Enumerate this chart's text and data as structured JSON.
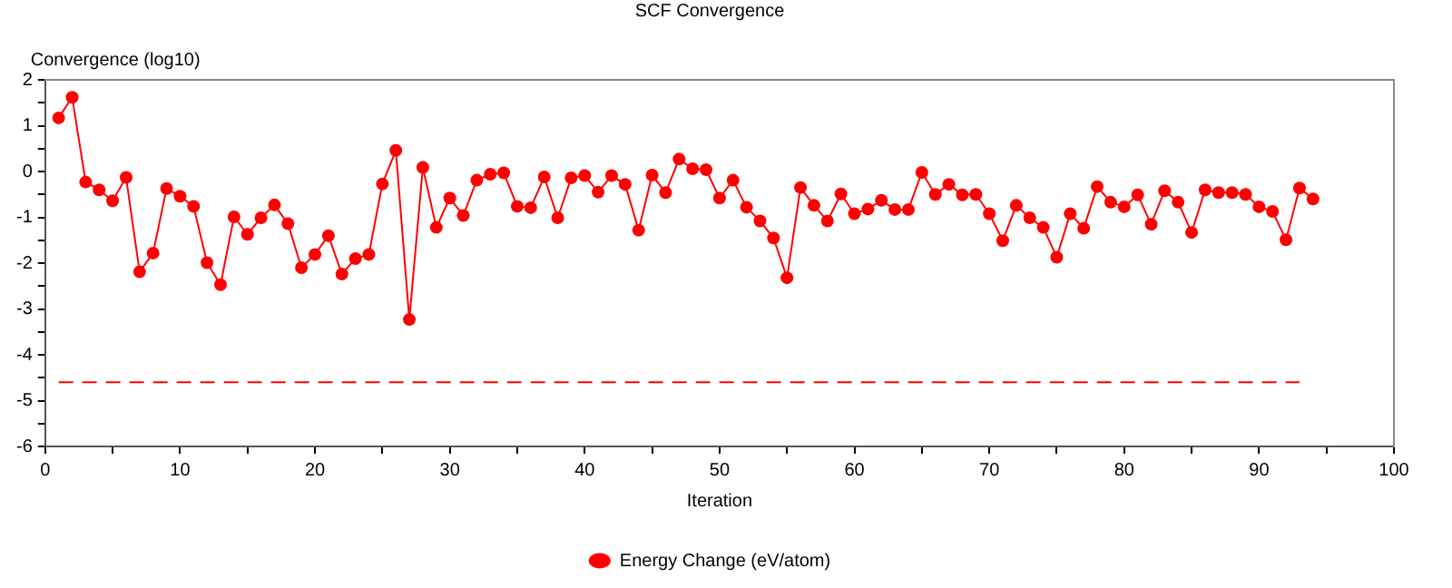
{
  "chart_data": {
    "type": "line",
    "title": "SCF Convergence",
    "xlabel": "Iteration",
    "ylabel": "Convergence (log10)",
    "x": [
      1,
      2,
      3,
      4,
      5,
      6,
      7,
      8,
      9,
      10,
      11,
      12,
      13,
      14,
      15,
      16,
      17,
      18,
      19,
      20,
      21,
      22,
      23,
      24,
      25,
      26,
      27,
      28,
      29,
      30,
      31,
      32,
      33,
      34,
      35,
      36,
      37,
      38,
      39,
      40,
      41,
      42,
      43,
      44,
      45,
      46,
      47,
      48,
      49,
      50,
      51,
      52,
      53,
      54,
      55,
      56,
      57,
      58,
      59,
      60,
      61,
      62,
      63,
      64,
      65,
      66,
      67,
      68,
      69,
      70,
      71,
      72,
      73,
      74,
      75,
      76,
      77,
      78,
      79,
      80,
      81,
      82,
      83,
      84,
      85,
      86,
      87,
      88,
      89,
      90,
      91,
      92,
      93,
      94
    ],
    "series": [
      {
        "name": "Energy Change (eV/atom)",
        "color": "#ff0000",
        "marker": "circle",
        "line_style": "solid",
        "values": [
          1.17,
          1.62,
          -0.23,
          -0.4,
          -0.64,
          -0.13,
          -2.19,
          -1.78,
          -0.37,
          -0.54,
          -0.76,
          -1.99,
          -2.47,
          -0.99,
          -1.37,
          -1.01,
          -0.73,
          -1.14,
          -2.1,
          -1.81,
          -1.4,
          -2.24,
          -1.9,
          -1.81,
          -0.27,
          0.46,
          -3.23,
          0.09,
          -1.22,
          -0.58,
          -0.96,
          -0.19,
          -0.06,
          -0.03,
          -0.76,
          -0.79,
          -0.12,
          -1.01,
          -0.14,
          -0.09,
          -0.45,
          -0.09,
          -0.28,
          -1.28,
          -0.08,
          -0.46,
          0.27,
          0.06,
          0.04,
          -0.58,
          -0.19,
          -0.78,
          -1.08,
          -1.45,
          -2.32,
          -0.35,
          -0.74,
          -1.08,
          -0.49,
          -0.92,
          -0.82,
          -0.63,
          -0.83,
          -0.83,
          -0.02,
          -0.5,
          -0.28,
          -0.51,
          -0.5,
          -0.92,
          -1.51,
          -0.74,
          -1.01,
          -1.22,
          -1.87,
          -0.92,
          -1.24,
          -0.33,
          -0.67,
          -0.77,
          -0.51,
          -1.15,
          -0.42,
          -0.67,
          -1.33,
          -0.4,
          -0.46,
          -0.46,
          -0.5,
          -0.77,
          -0.87,
          -1.49,
          -0.36,
          -0.6
        ]
      },
      {
        "color": "#ff0000",
        "marker": "none",
        "line_style": "dashed",
        "x": [
          1,
          93
        ],
        "values": [
          -4.6,
          -4.6
        ]
      }
    ],
    "xlim": [
      0,
      100
    ],
    "xticks": [
      0,
      {
        "value": 5,
        "label": null
      },
      10,
      {
        "value": 15,
        "label": null
      },
      20,
      {
        "value": 25,
        "label": null
      },
      30,
      {
        "value": 35,
        "label": null
      },
      40,
      {
        "value": 45,
        "label": null
      },
      50,
      {
        "value": 55,
        "label": null
      },
      60,
      {
        "value": 65,
        "label": null
      },
      70,
      {
        "value": 75,
        "label": null
      },
      80,
      {
        "value": 85,
        "label": null
      },
      90,
      {
        "value": 95,
        "label": null
      },
      100
    ],
    "ylim": [
      -6,
      2
    ],
    "yticks": [
      -6,
      {
        "value": -5.5,
        "label": null
      },
      -5,
      {
        "value": -4.5,
        "label": null
      },
      -4,
      {
        "value": -3.5,
        "label": null
      },
      -3,
      {
        "value": -2.5,
        "label": null
      },
      -2,
      {
        "value": -1.5,
        "label": null
      },
      -1,
      {
        "value": -0.5,
        "label": null
      },
      0,
      {
        "value": 0.5,
        "label": null
      },
      1,
      {
        "value": 1.5,
        "label": null
      },
      2
    ],
    "grid": false,
    "legend": "bottom"
  }
}
